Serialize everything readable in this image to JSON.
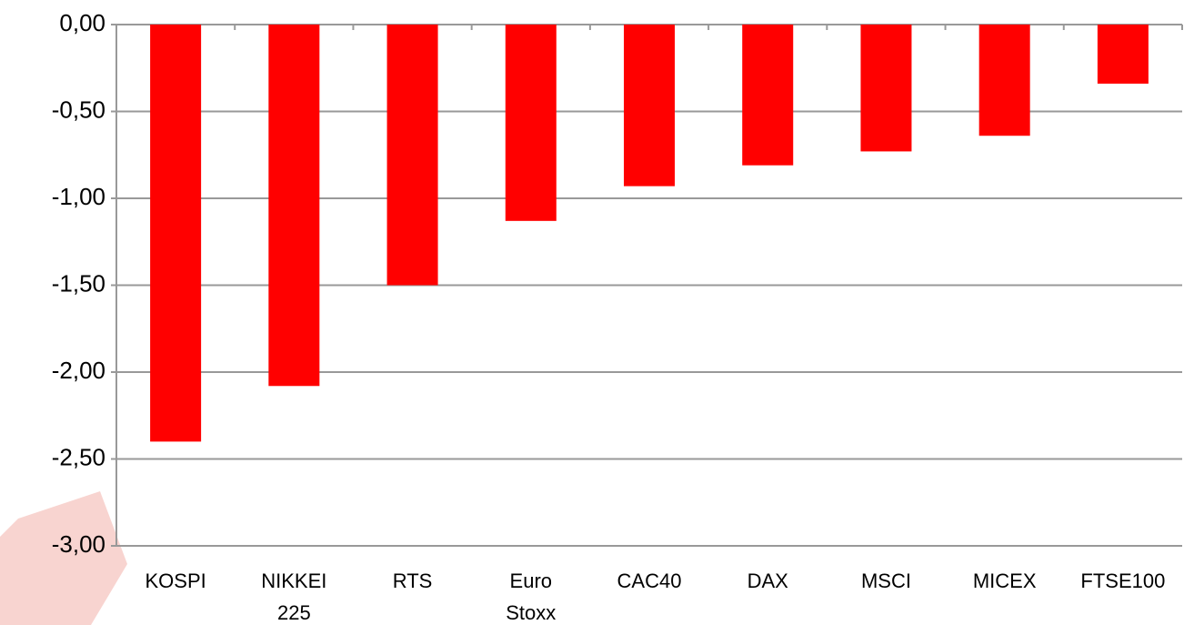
{
  "chart_data": {
    "type": "bar",
    "categories": [
      "KOSPI",
      "NIKKEI 225",
      "RTS",
      "Euro Stoxx",
      "CAC40",
      "DAX",
      "MSCI",
      "MICEX",
      "FTSE100"
    ],
    "values": [
      -2.4,
      -2.08,
      -1.5,
      -1.13,
      -0.93,
      -0.81,
      -0.73,
      -0.64,
      -0.34
    ],
    "color": "#ff0000",
    "ylim": [
      -3,
      0
    ],
    "yticks": [
      {
        "value": 0,
        "label": "0,00"
      },
      {
        "value": -0.5,
        "label": "-0,50"
      },
      {
        "value": -1,
        "label": "-1,00"
      },
      {
        "value": -1.5,
        "label": "-1,50"
      },
      {
        "value": -2,
        "label": "-2,00"
      },
      {
        "value": -2.5,
        "label": "-2,50"
      },
      {
        "value": -3,
        "label": "-3,00"
      }
    ],
    "grid": true
  }
}
